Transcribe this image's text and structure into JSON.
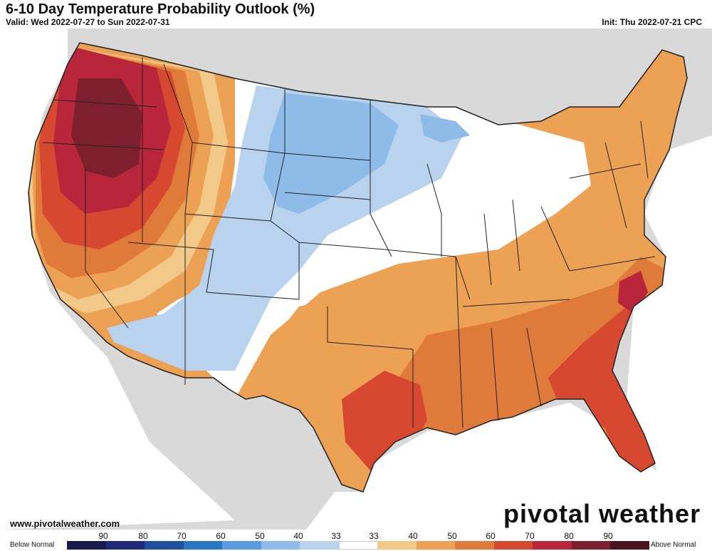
{
  "header": {
    "title": "6-10 Day Temperature Probability Outlook (%)",
    "valid": "Valid: Wed 2022-07-27 to Sun 2022-07-31",
    "init": "Init: Thu 2022-07-21 CPC"
  },
  "footer": {
    "website": "www.pivotalweather.com",
    "brand": "pivotal weather"
  },
  "legend": {
    "below_label": "Below Normal",
    "above_label": "Above Normal",
    "ticks": [
      "90",
      "80",
      "70",
      "60",
      "50",
      "40",
      "33",
      "33",
      "40",
      "50",
      "60",
      "70",
      "80",
      "90"
    ],
    "colors": [
      "#1a1a4e",
      "#1f2a7a",
      "#1f4f9e",
      "#2a75c4",
      "#5a9be0",
      "#8fbbe8",
      "#b9d3ef",
      "#ffffff",
      "#f3c98a",
      "#eda155",
      "#e07a3a",
      "#d6482f",
      "#b9253a",
      "#7d1f2d",
      "#4a1320"
    ]
  },
  "map": {
    "region": "Contiguous United States",
    "colors": {
      "land_outside": "#d9d9d9",
      "water": "#ffffff",
      "state_border": "#222222"
    }
  }
}
